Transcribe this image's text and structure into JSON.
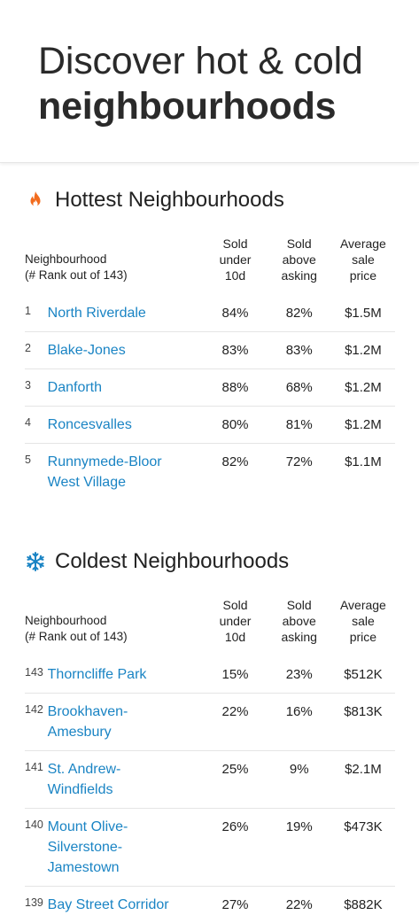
{
  "hero": {
    "line1": "Discover hot & cold",
    "line2": "neighbourhoods"
  },
  "columns": {
    "neighbourhood": "Neighbourhood",
    "rank_note": "(# Rank out of 143)",
    "sold_under": [
      "Sold",
      "under",
      "10d"
    ],
    "sold_above": [
      "Sold",
      "above",
      "asking"
    ],
    "avg_price": [
      "Average",
      "sale",
      "price"
    ]
  },
  "hottest": {
    "title": "Hottest Neighbourhoods",
    "icon": "flame-icon",
    "icon_color": "#f26b1d",
    "rows": [
      {
        "rank": "1",
        "name": [
          "North Riverdale"
        ],
        "sold_under": "84%",
        "sold_above": "82%",
        "price": "$1.5M"
      },
      {
        "rank": "2",
        "name": [
          "Blake-Jones"
        ],
        "sold_under": "83%",
        "sold_above": "83%",
        "price": "$1.2M"
      },
      {
        "rank": "3",
        "name": [
          "Danforth"
        ],
        "sold_under": "88%",
        "sold_above": "68%",
        "price": "$1.2M"
      },
      {
        "rank": "4",
        "name": [
          "Roncesvalles"
        ],
        "sold_under": "80%",
        "sold_above": "81%",
        "price": "$1.2M"
      },
      {
        "rank": "5",
        "name": [
          "Runnymede-Bloor",
          "West Village"
        ],
        "sold_under": "82%",
        "sold_above": "72%",
        "price": "$1.1M"
      }
    ]
  },
  "coldest": {
    "title": "Coldest Neighbourhoods",
    "icon": "snowflake-icon",
    "icon_color": "#1a84c4",
    "rows": [
      {
        "rank": "143",
        "name": [
          "Thorncliffe Park"
        ],
        "sold_under": "15%",
        "sold_above": "23%",
        "price": "$512K"
      },
      {
        "rank": "142",
        "name": [
          "Brookhaven-",
          "Amesbury"
        ],
        "sold_under": "22%",
        "sold_above": "16%",
        "price": "$813K"
      },
      {
        "rank": "141",
        "name": [
          "St. Andrew-",
          "Windfields"
        ],
        "sold_under": "25%",
        "sold_above": "9%",
        "price": "$2.1M"
      },
      {
        "rank": "140",
        "name": [
          "Mount Olive-",
          "Silverstone-",
          "Jamestown"
        ],
        "sold_under": "26%",
        "sold_above": "19%",
        "price": "$473K"
      },
      {
        "rank": "139",
        "name": [
          "Bay Street Corridor"
        ],
        "sold_under": "27%",
        "sold_above": "22%",
        "price": "$882K"
      }
    ]
  }
}
